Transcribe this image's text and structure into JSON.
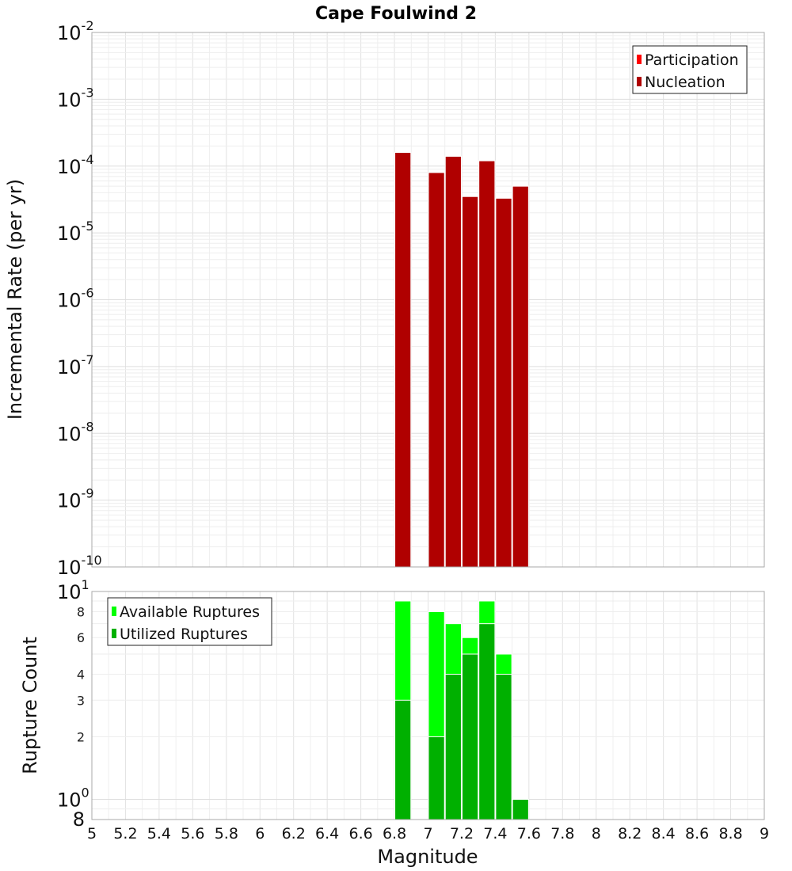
{
  "title": "Cape Foulwind 2",
  "chart_data": [
    {
      "type": "bar",
      "panel": "top",
      "ylabel": "Incremental Rate (per yr)",
      "yscale": "log",
      "ylim": [
        1e-10,
        0.01
      ],
      "xlim": [
        5,
        9
      ],
      "grid": true,
      "y_ticks": [
        {
          "base": "10",
          "exp": "-10",
          "value": 1e-10
        },
        {
          "base": "10",
          "exp": "-9",
          "value": 1e-09
        },
        {
          "base": "10",
          "exp": "-8",
          "value": 1e-08
        },
        {
          "base": "10",
          "exp": "-7",
          "value": 1e-07
        },
        {
          "base": "10",
          "exp": "-6",
          "value": 1e-06
        },
        {
          "base": "10",
          "exp": "-5",
          "value": 1e-05
        },
        {
          "base": "10",
          "exp": "-4",
          "value": 0.0001
        },
        {
          "base": "10",
          "exp": "-3",
          "value": 0.001
        },
        {
          "base": "10",
          "exp": "-2",
          "value": 0.01
        }
      ],
      "legend": {
        "position": "top-right",
        "items": [
          {
            "label": "Participation",
            "color": "#ff0000"
          },
          {
            "label": "Nucleation",
            "color": "#b00000"
          }
        ]
      },
      "series": [
        {
          "name": "Nucleation",
          "color": "#b00000",
          "x": [
            6.85,
            7.05,
            7.15,
            7.25,
            7.35,
            7.45,
            7.55
          ],
          "values": [
            0.00016,
            8e-05,
            0.00014,
            3.5e-05,
            0.00012,
            3.3e-05,
            5e-05
          ]
        }
      ]
    },
    {
      "type": "bar",
      "panel": "bottom",
      "ylabel": "Rupture Count",
      "xlabel": "Magnitude",
      "yscale": "log",
      "ylim": [
        0.8,
        10
      ],
      "xlim": [
        5,
        9
      ],
      "grid": true,
      "x_ticks": [
        "5",
        "5.2",
        "5.4",
        "5.6",
        "5.8",
        "6",
        "6.2",
        "6.4",
        "6.6",
        "6.8",
        "7",
        "7.2",
        "7.4",
        "7.6",
        "7.8",
        "8",
        "8.2",
        "8.4",
        "8.6",
        "8.8",
        "9"
      ],
      "y_ticks_major": [
        {
          "base": "10",
          "exp": "1",
          "value": 10
        },
        {
          "base": "10",
          "exp": "0",
          "value": 1
        }
      ],
      "y_ticks_minor": [
        {
          "label": "8",
          "value": 8
        },
        {
          "label": "6",
          "value": 6
        },
        {
          "label": "4",
          "value": 4
        },
        {
          "label": "3",
          "value": 3
        },
        {
          "label": "2",
          "value": 2
        }
      ],
      "y_bottom_label": {
        "label": "8",
        "value": 0.8
      },
      "legend": {
        "position": "top-left",
        "items": [
          {
            "label": "Available Ruptures",
            "color": "#00ff00"
          },
          {
            "label": "Utilized Ruptures",
            "color": "#00b000"
          }
        ]
      },
      "series": [
        {
          "name": "Available Ruptures",
          "color": "#00ff00",
          "x": [
            6.85,
            7.05,
            7.15,
            7.25,
            7.35,
            7.45,
            7.55
          ],
          "values": [
            9,
            8,
            7,
            6,
            9,
            5,
            1
          ]
        },
        {
          "name": "Utilized Ruptures",
          "color": "#00b000",
          "x": [
            6.85,
            7.05,
            7.15,
            7.25,
            7.35,
            7.45,
            7.55
          ],
          "values": [
            3,
            2,
            4,
            5,
            7,
            4,
            1
          ]
        }
      ]
    }
  ]
}
